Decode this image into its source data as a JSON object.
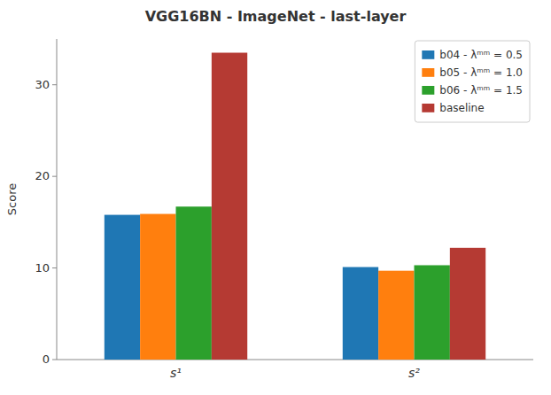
{
  "chart_data": {
    "type": "bar",
    "title": "VGG16BN - ImageNet - last-layer",
    "categories": [
      "s¹",
      "s²"
    ],
    "ylabel": "Score",
    "series": [
      {
        "name": "b04 - λᵐᵐ = 0.5",
        "color": "#1f77b4",
        "values": [
          15.8,
          10.1
        ]
      },
      {
        "name": "b05 - λᵐᵐ = 1.0",
        "color": "#ff7f0e",
        "values": [
          15.9,
          9.7
        ]
      },
      {
        "name": "b06 - λᵐᵐ = 1.5",
        "color": "#2ca02c",
        "values": [
          16.7,
          10.3
        ]
      },
      {
        "name": "baseline",
        "color": "#b53a33",
        "values": [
          33.5,
          12.2
        ]
      }
    ],
    "ylim": [
      0,
      35
    ],
    "yticks": [
      0,
      10,
      20,
      30
    ],
    "grid": false,
    "legend": "upper right"
  }
}
